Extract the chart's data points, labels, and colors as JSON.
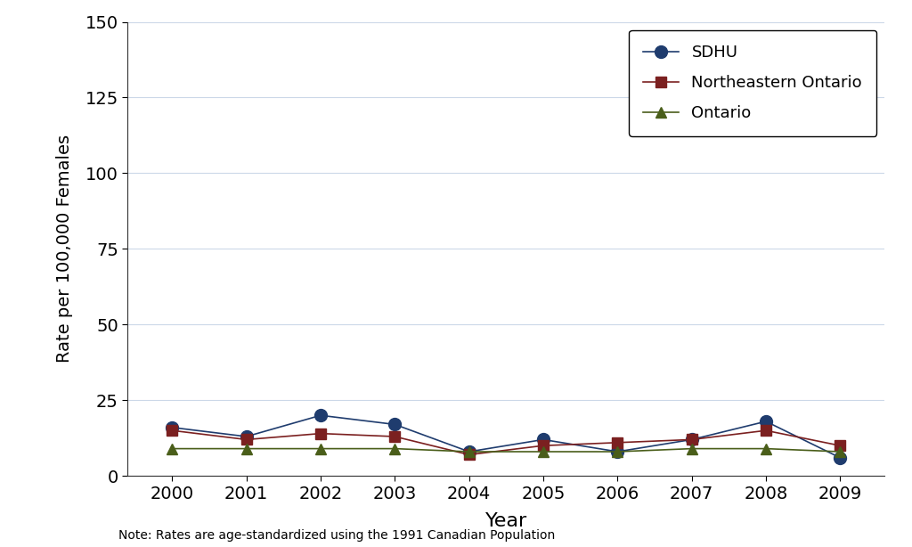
{
  "years": [
    2000,
    2001,
    2002,
    2003,
    2004,
    2005,
    2006,
    2007,
    2008,
    2009
  ],
  "sdhu": [
    16,
    13,
    20,
    17,
    8,
    12,
    8,
    12,
    18,
    6
  ],
  "northeastern_ontario": [
    15,
    12,
    14,
    13,
    7,
    10,
    11,
    12,
    15,
    10
  ],
  "ontario": [
    9,
    9,
    9,
    9,
    8,
    8,
    8,
    9,
    9,
    8
  ],
  "sdhu_color": "#1f3c6e",
  "northeastern_color": "#7b2020",
  "ontario_color": "#4a5e1a",
  "sdhu_label": "SDHU",
  "northeastern_label": "Northeastern Ontario",
  "ontario_label": "Ontario",
  "ylabel": "Rate per 100,000 Females",
  "xlabel": "Year",
  "ylim": [
    0,
    150
  ],
  "yticks": [
    0,
    25,
    50,
    75,
    100,
    125,
    150
  ],
  "xlim": [
    1999.4,
    2009.6
  ],
  "note": "Note: Rates are age-standardized using the 1991 Canadian Population",
  "background_color": "#ffffff",
  "grid_color": "#ccd8e8"
}
